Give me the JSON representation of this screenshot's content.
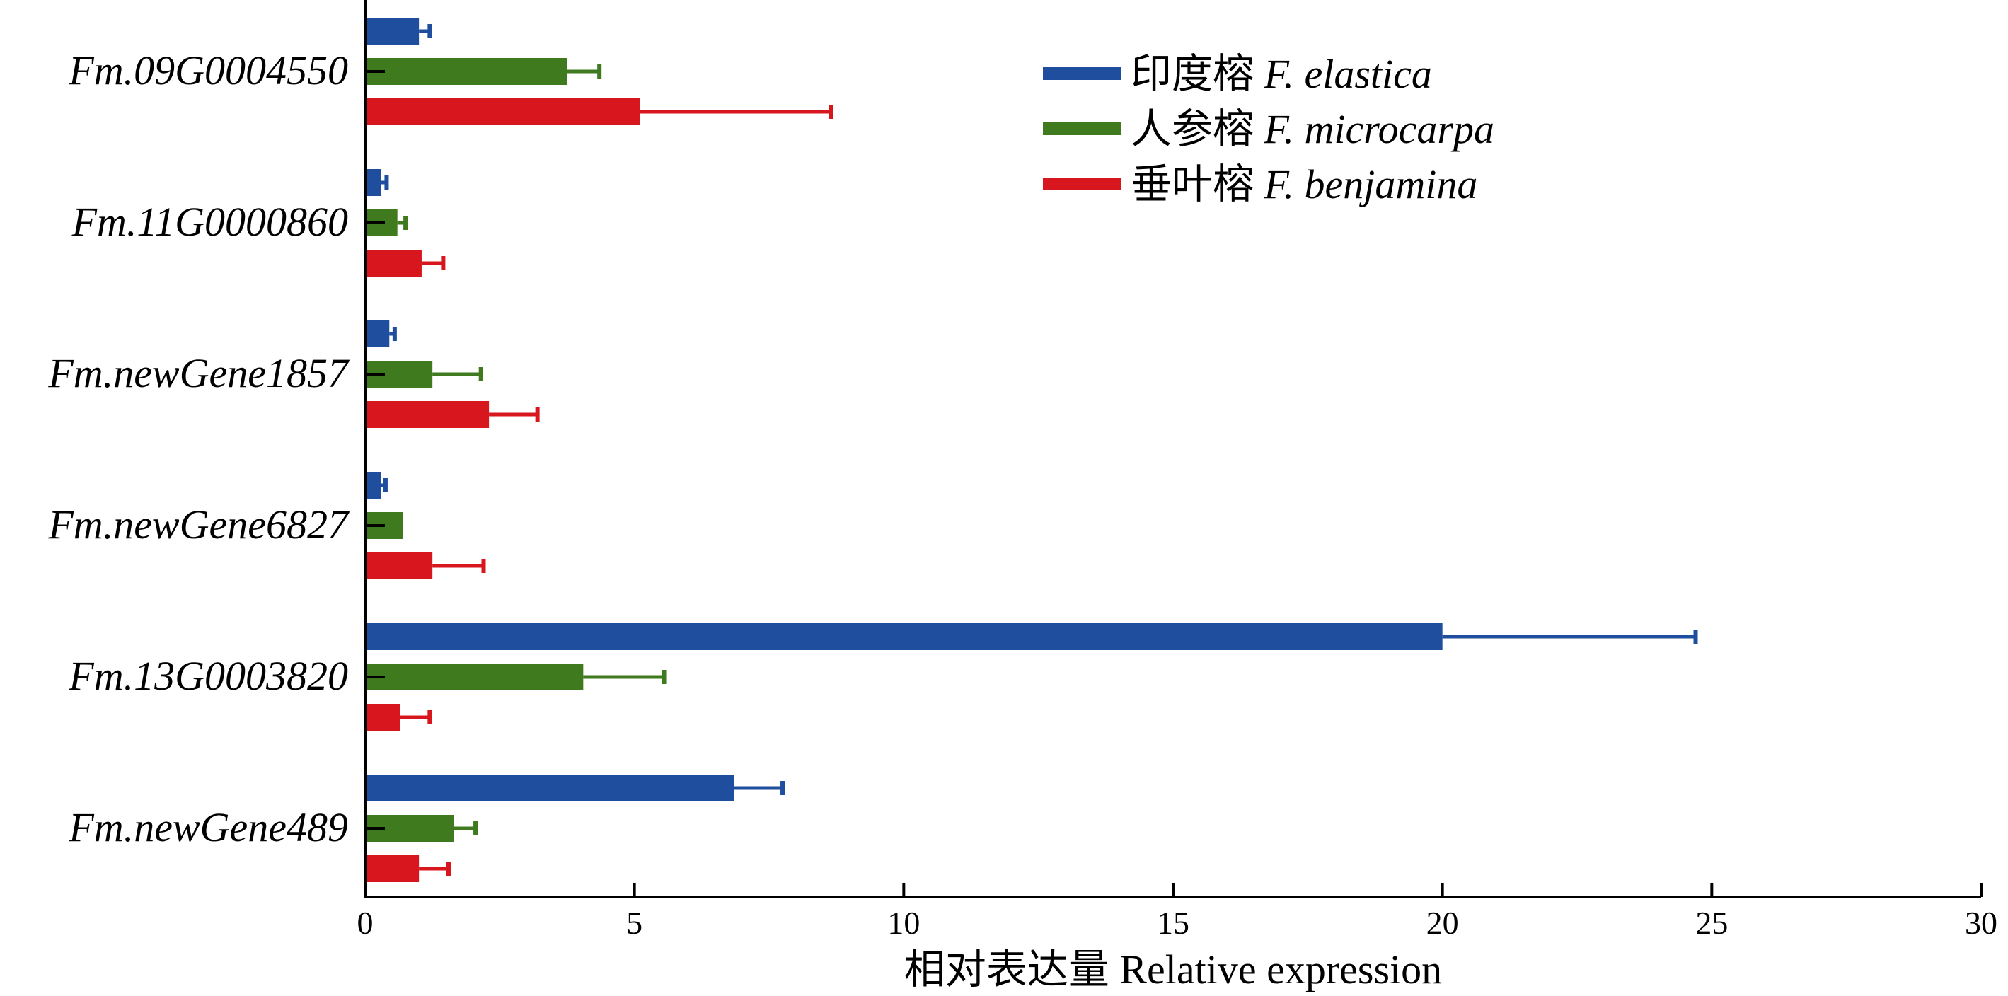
{
  "chart_data": {
    "type": "bar",
    "orientation": "horizontal",
    "categories": [
      "Fm.09G0004550",
      "Fm.11G0000860",
      "Fm.newGene1857",
      "Fm.newGene6827",
      "Fm.13G0003820",
      "Fm.newGene489"
    ],
    "series": [
      {
        "name_cn": "印度榕",
        "name_sci": "F. elastica",
        "color": "#1f4e9f",
        "values": [
          1.0,
          0.3,
          0.45,
          0.3,
          20.0,
          6.85
        ],
        "errors": [
          0.2,
          0.1,
          0.1,
          0.08,
          4.7,
          0.9
        ]
      },
      {
        "name_cn": "人参榕",
        "name_sci": "F. microcarpa",
        "color": "#3f7a1f",
        "values": [
          3.75,
          0.6,
          1.25,
          0.7,
          4.05,
          1.65
        ],
        "errors": [
          0.6,
          0.15,
          0.9,
          0.0,
          1.5,
          0.4
        ]
      },
      {
        "name_cn": "垂叶榕",
        "name_sci": "F. benjamina",
        "color": "#d7161d",
        "values": [
          5.1,
          1.05,
          2.3,
          1.25,
          0.65,
          1.0
        ],
        "errors": [
          3.55,
          0.4,
          0.9,
          0.95,
          0.55,
          0.55
        ]
      }
    ],
    "xlabel": "相对表达量 Relative expression",
    "xlim": [
      0,
      30
    ],
    "xticks": [
      0,
      5,
      10,
      15,
      20,
      25,
      30
    ],
    "grid": false,
    "legend_position": "top-right"
  }
}
